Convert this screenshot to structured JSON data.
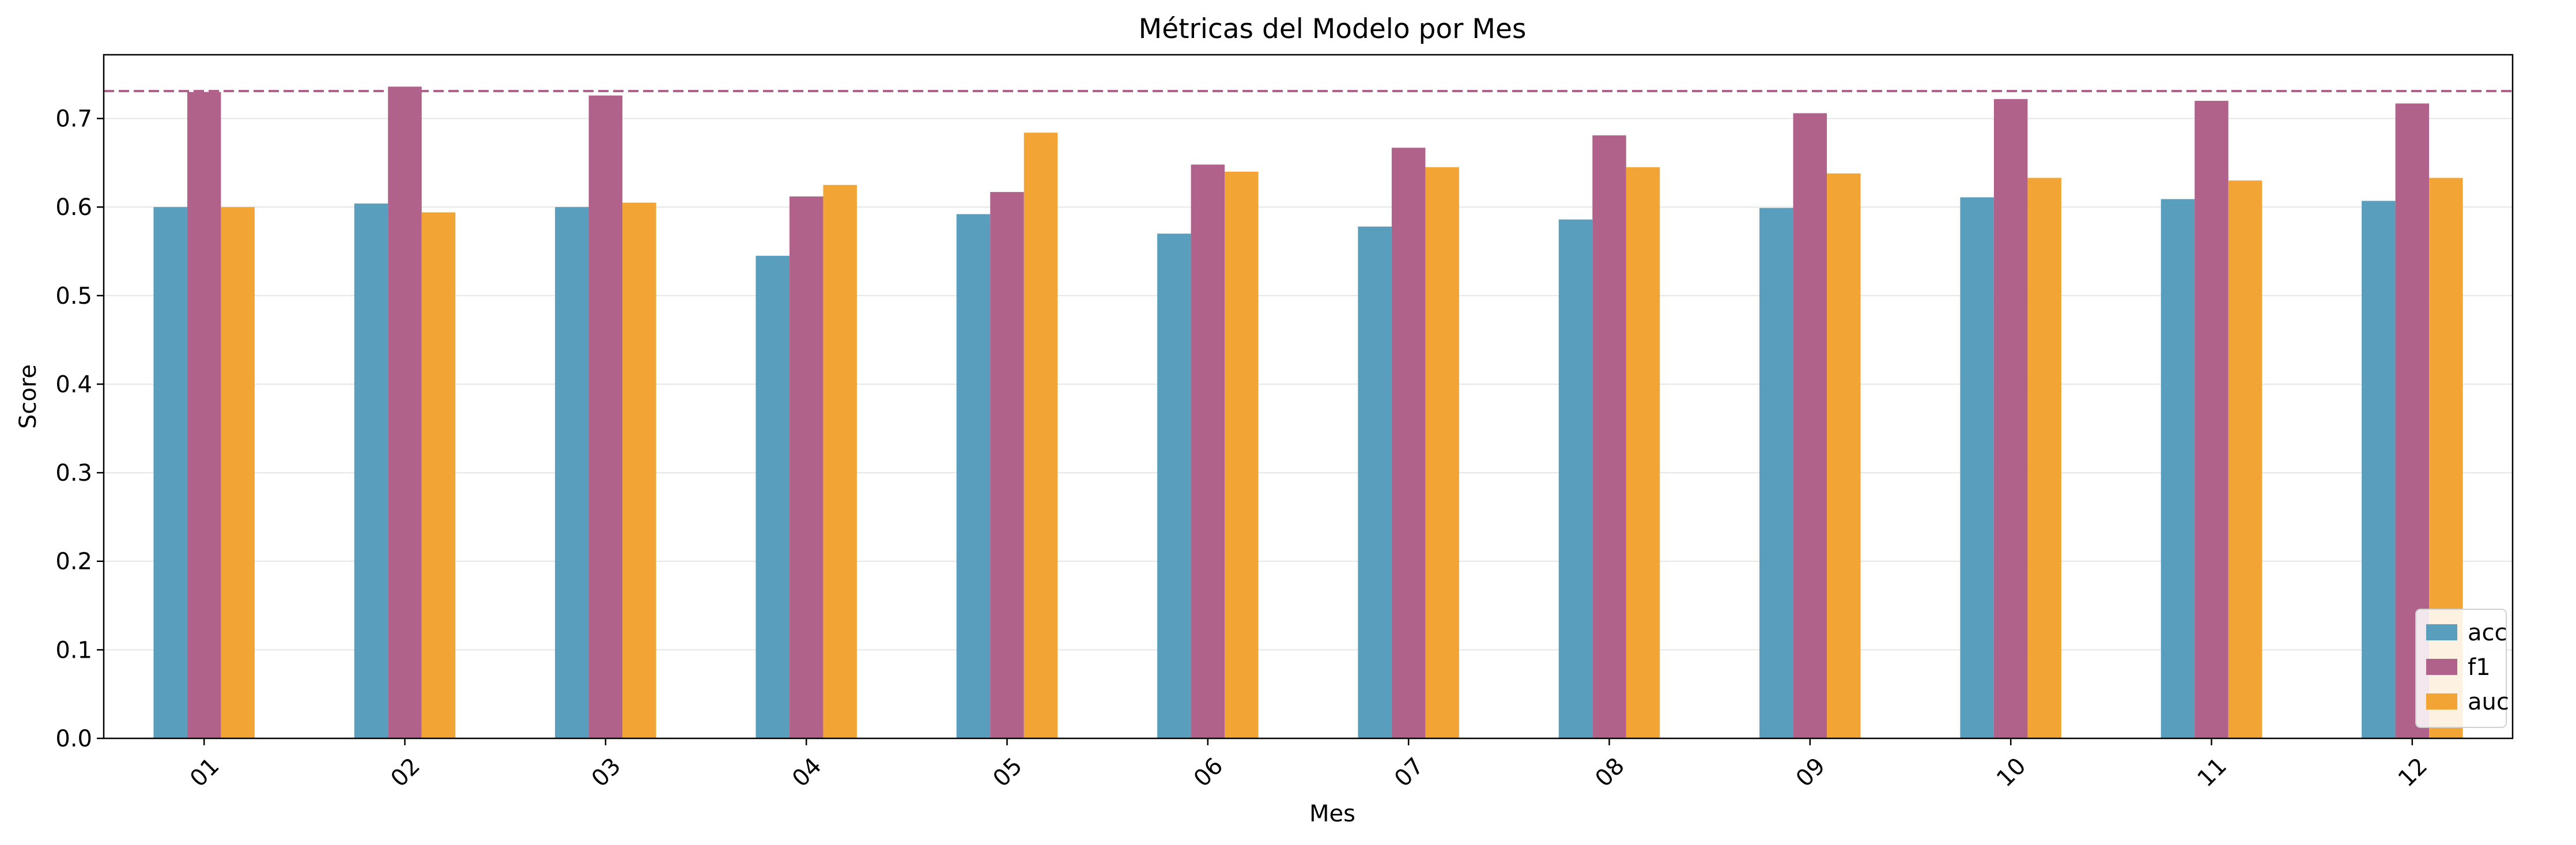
{
  "chart_data": {
    "type": "bar",
    "title": "Métricas del Modelo por Mes",
    "xlabel": "Mes",
    "ylabel": "Score",
    "categories": [
      "01",
      "02",
      "03",
      "04",
      "05",
      "06",
      "07",
      "08",
      "09",
      "10",
      "11",
      "12"
    ],
    "series": [
      {
        "name": "acc",
        "color": "#5a9ebd",
        "values": [
          0.6,
          0.604,
          0.6,
          0.545,
          0.592,
          0.57,
          0.578,
          0.586,
          0.599,
          0.611,
          0.609,
          0.607
        ]
      },
      {
        "name": "f1",
        "color": "#b0628b",
        "values": [
          0.73,
          0.736,
          0.726,
          0.612,
          0.617,
          0.648,
          0.667,
          0.681,
          0.706,
          0.722,
          0.72,
          0.717
        ]
      },
      {
        "name": "auc",
        "color": "#f2a535",
        "values": [
          0.6,
          0.594,
          0.605,
          0.625,
          0.684,
          0.64,
          0.645,
          0.645,
          0.638,
          0.633,
          0.63,
          0.633
        ]
      }
    ],
    "reference_line": {
      "value": 0.731,
      "color": "#b0628b",
      "style": "dashed"
    },
    "ylim": [
      0,
      0.772
    ],
    "yticks": [
      0.0,
      0.1,
      0.2,
      0.3,
      0.4,
      0.5,
      0.6,
      0.7
    ],
    "ytick_labels": [
      "0.0",
      "0.1",
      "0.2",
      "0.3",
      "0.4",
      "0.5",
      "0.6",
      "0.7"
    ],
    "grid": "horizontal",
    "legend_position": "lower-right",
    "xtick_rotation": 45
  }
}
